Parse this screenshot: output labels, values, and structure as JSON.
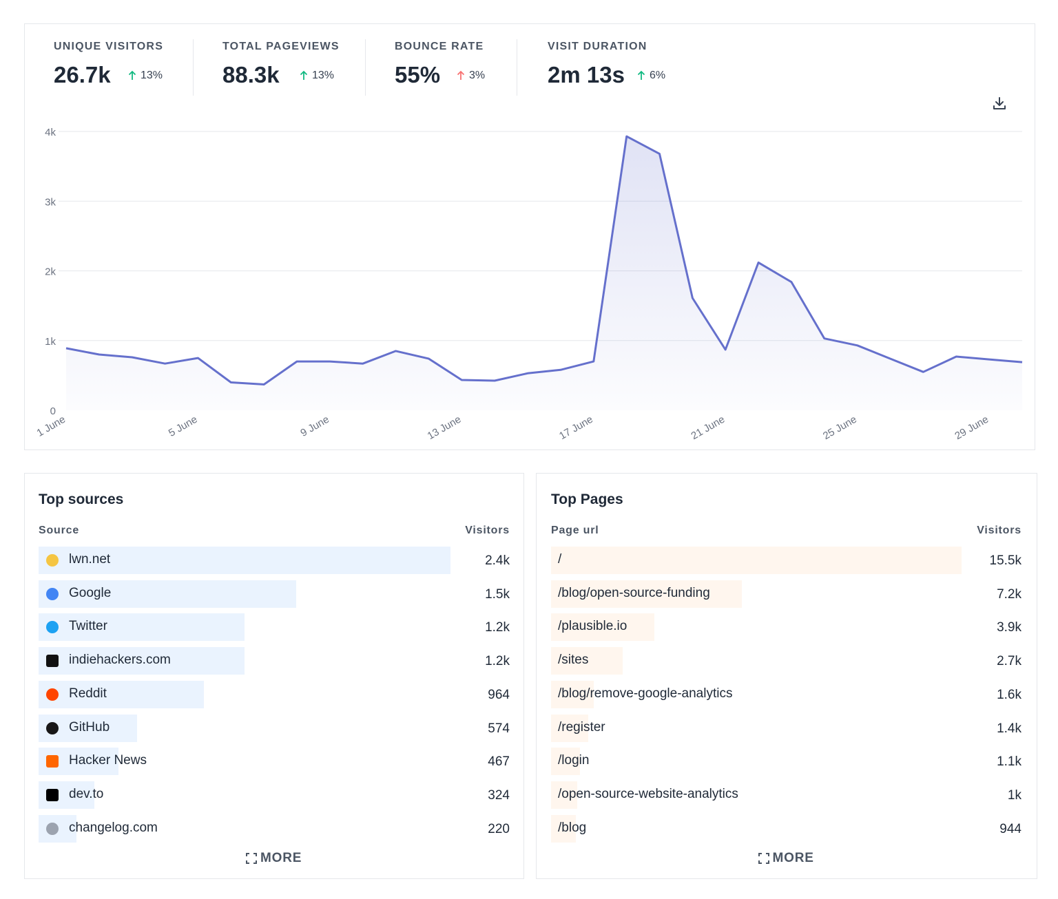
{
  "stats": [
    {
      "label": "UNIQUE VISITORS",
      "value": "26.7k",
      "change": "13%",
      "color": "#10b981"
    },
    {
      "label": "TOTAL PAGEVIEWS",
      "value": "88.3k",
      "change": "13%",
      "color": "#10b981"
    },
    {
      "label": "BOUNCE RATE",
      "value": "55%",
      "change": "3%",
      "color": "#f87171"
    },
    {
      "label": "VISIT DURATION",
      "value": "2m 13s",
      "change": "6%",
      "color": "#10b981"
    }
  ],
  "chart_data": {
    "type": "line",
    "categories": [
      "1 June",
      null,
      null,
      null,
      "5 June",
      null,
      null,
      null,
      "9 June",
      null,
      null,
      null,
      "13 June",
      null,
      null,
      null,
      "17 June",
      null,
      null,
      null,
      "21 June",
      null,
      null,
      null,
      "25 June",
      null,
      null,
      null,
      "29 June",
      null
    ],
    "values": [
      890,
      800,
      760,
      670,
      750,
      400,
      370,
      700,
      700,
      670,
      850,
      740,
      435,
      425,
      530,
      580,
      700,
      3930,
      3680,
      1610,
      870,
      2120,
      1840,
      1030,
      930,
      740,
      550,
      770,
      730,
      690
    ],
    "color": "#6570cc",
    "ylim": [
      0,
      4000
    ],
    "yticks": [
      0,
      {
        "value": 1000,
        "label": "1k"
      },
      {
        "value": 2000,
        "label": "2k"
      },
      {
        "value": 3000,
        "label": "3k"
      },
      {
        "value": 4000,
        "label": "4k"
      }
    ],
    "grid": true
  },
  "top_sources": {
    "title": "Top sources",
    "columns": [
      "Source",
      "Visitors"
    ],
    "color": "#eaf3fe",
    "rows": [
      {
        "label": "lwn.net",
        "value": 2400,
        "value_label": "2.4k"
      },
      {
        "label": "Google",
        "value": 1500,
        "value_label": "1.5k"
      },
      {
        "label": "Twitter",
        "value": 1200,
        "value_label": "1.2k"
      },
      {
        "label": "indiehackers.com",
        "value": 1200,
        "value_label": "1.2k"
      },
      {
        "label": "Reddit",
        "value": 964
      },
      {
        "label": "GitHub",
        "value": 574
      },
      {
        "label": "Hacker News",
        "value": 467
      },
      {
        "label": "dev.to",
        "value": 324
      },
      {
        "label": "changelog.com",
        "value": 220
      }
    ],
    "more": "MORE"
  },
  "top_pages": {
    "title": "Top Pages",
    "columns": [
      "Page url",
      "Visitors"
    ],
    "color": "#fff6ee",
    "rows": [
      {
        "label": "/",
        "value": 15500,
        "value_label": "15.5k"
      },
      {
        "label": "/blog/open-source-funding",
        "value": 7200,
        "value_label": "7.2k"
      },
      {
        "label": "/plausible.io",
        "value": 3900,
        "value_label": "3.9k"
      },
      {
        "label": "/sites",
        "value": 2700,
        "value_label": "2.7k"
      },
      {
        "label": "/blog/remove-google-analytics",
        "value": 1600,
        "value_label": "1.6k"
      },
      {
        "label": "/register",
        "value": 1400,
        "value_label": "1.4k"
      },
      {
        "label": "/login",
        "value": 1100,
        "value_label": "1.1k"
      },
      {
        "label": "/open-source-website-analytics",
        "value": 1000,
        "value_label": "1k"
      },
      {
        "label": "/blog",
        "value": 944
      }
    ],
    "more": "MORE"
  }
}
